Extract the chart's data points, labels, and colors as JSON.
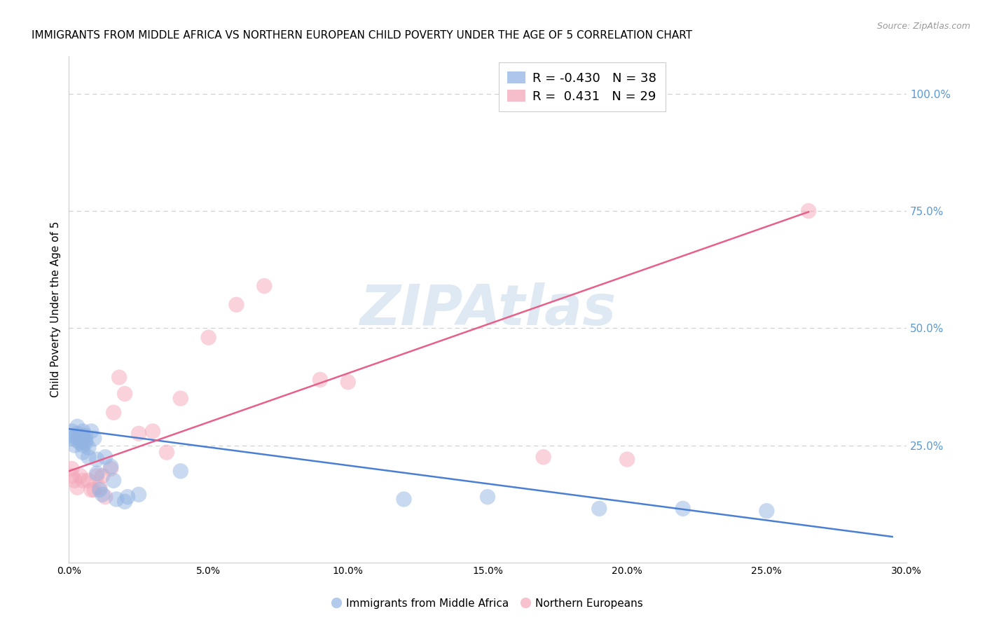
{
  "title": "IMMIGRANTS FROM MIDDLE AFRICA VS NORTHERN EUROPEAN CHILD POVERTY UNDER THE AGE OF 5 CORRELATION CHART",
  "source": "Source: ZipAtlas.com",
  "ylabel": "Child Poverty Under the Age of 5",
  "watermark": "ZIPAtlas",
  "right_ytick_labels": [
    "100.0%",
    "75.0%",
    "50.0%",
    "25.0%"
  ],
  "right_ytick_values": [
    1.0,
    0.75,
    0.5,
    0.25
  ],
  "xtick_labels": [
    "0.0%",
    "5.0%",
    "10.0%",
    "15.0%",
    "20.0%",
    "25.0%",
    "30.0%"
  ],
  "xtick_values": [
    0.0,
    0.05,
    0.1,
    0.15,
    0.2,
    0.25,
    0.3
  ],
  "xlim": [
    0.0,
    0.3
  ],
  "ylim": [
    0.0,
    1.08
  ],
  "blue_color": "#92b4e3",
  "pink_color": "#f4a7b9",
  "blue_line_color": "#4a7fd4",
  "pink_line_color": "#e8608a",
  "right_axis_color": "#5a9ad5",
  "blue_R": -0.43,
  "blue_N": 38,
  "pink_R": 0.431,
  "pink_N": 29,
  "blue_label": "Immigrants from Middle Africa",
  "pink_label": "Northern Europeans",
  "grid_color": "#d0d0d0",
  "title_fontsize": 11,
  "source_fontsize": 9,
  "blue_scatter_x": [
    0.001,
    0.001,
    0.002,
    0.002,
    0.003,
    0.003,
    0.003,
    0.004,
    0.004,
    0.004,
    0.005,
    0.005,
    0.005,
    0.005,
    0.006,
    0.006,
    0.006,
    0.007,
    0.007,
    0.008,
    0.009,
    0.01,
    0.01,
    0.011,
    0.012,
    0.013,
    0.015,
    0.016,
    0.017,
    0.02,
    0.021,
    0.025,
    0.04,
    0.12,
    0.15,
    0.19,
    0.22,
    0.25
  ],
  "blue_scatter_y": [
    0.28,
    0.265,
    0.27,
    0.25,
    0.29,
    0.275,
    0.26,
    0.265,
    0.27,
    0.255,
    0.28,
    0.27,
    0.25,
    0.235,
    0.27,
    0.26,
    0.255,
    0.245,
    0.225,
    0.28,
    0.265,
    0.22,
    0.19,
    0.155,
    0.145,
    0.225,
    0.205,
    0.175,
    0.135,
    0.13,
    0.14,
    0.145,
    0.195,
    0.135,
    0.14,
    0.115,
    0.115,
    0.11
  ],
  "pink_scatter_x": [
    0.001,
    0.001,
    0.002,
    0.003,
    0.004,
    0.005,
    0.007,
    0.008,
    0.009,
    0.01,
    0.011,
    0.012,
    0.013,
    0.015,
    0.016,
    0.018,
    0.02,
    0.025,
    0.03,
    0.035,
    0.04,
    0.05,
    0.06,
    0.07,
    0.09,
    0.1,
    0.17,
    0.2,
    0.265
  ],
  "pink_scatter_y": [
    0.2,
    0.185,
    0.175,
    0.16,
    0.185,
    0.175,
    0.175,
    0.155,
    0.155,
    0.185,
    0.16,
    0.185,
    0.14,
    0.2,
    0.32,
    0.395,
    0.36,
    0.275,
    0.28,
    0.235,
    0.35,
    0.48,
    0.55,
    0.59,
    0.39,
    0.385,
    0.225,
    0.22,
    0.75
  ],
  "blue_trend_x0": 0.0,
  "blue_trend_x1": 0.295,
  "blue_trend_y0": 0.285,
  "blue_trend_y1": 0.055,
  "pink_trend_x0": 0.0,
  "pink_trend_x1": 0.265,
  "pink_trend_y0": 0.195,
  "pink_trend_y1": 0.748
}
